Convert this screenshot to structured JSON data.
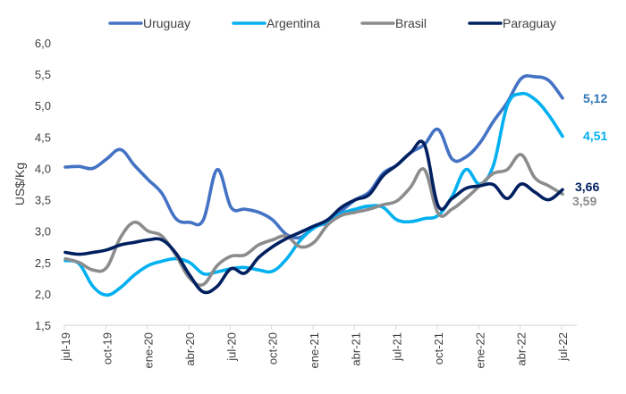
{
  "chart_data": {
    "type": "line",
    "title": "",
    "xlabel": "",
    "ylabel": "US$/Kg",
    "ylim": [
      1.5,
      6.0
    ],
    "yticks": [
      1.5,
      2.0,
      2.5,
      3.0,
      3.5,
      4.0,
      4.5,
      5.0,
      5.5,
      6.0
    ],
    "ytick_labels": [
      "1,5",
      "2,0",
      "2,5",
      "3,0",
      "3,5",
      "4,0",
      "4,5",
      "5,0",
      "5,5",
      "6,0"
    ],
    "grid": false,
    "legend_position": "top",
    "x_tick_labels": [
      "jul-19",
      "oct-19",
      "ene-20",
      "abr-20",
      "jul-20",
      "oct-20",
      "ene-21",
      "abr-21",
      "jul-21",
      "oct-21",
      "ene-22",
      "abr-22",
      "jul-22"
    ],
    "x_tick_every_months": 3,
    "x_months": [
      "jul-19",
      "ago-19",
      "sep-19",
      "oct-19",
      "nov-19",
      "dic-19",
      "ene-20",
      "feb-20",
      "mar-20",
      "abr-20",
      "may-20",
      "jun-20",
      "jul-20",
      "ago-20",
      "sep-20",
      "oct-20",
      "nov-20",
      "dic-20",
      "ene-21",
      "feb-21",
      "mar-21",
      "abr-21",
      "may-21",
      "jun-21",
      "jul-21",
      "ago-21",
      "sep-21",
      "oct-21",
      "nov-21",
      "dic-21",
      "ene-22",
      "feb-22",
      "mar-22",
      "abr-22",
      "may-22",
      "jun-22",
      "jul-22"
    ],
    "series": [
      {
        "name": "Uruguay",
        "color": "#4472C4",
        "label_color": "#2E75B6",
        "end_label": "5,12",
        "values": [
          4.02,
          4.03,
          4.0,
          4.15,
          4.3,
          4.05,
          3.82,
          3.6,
          3.2,
          3.14,
          3.18,
          3.98,
          3.38,
          3.35,
          3.3,
          3.18,
          2.95,
          2.9,
          3.06,
          3.14,
          3.32,
          3.5,
          3.62,
          3.92,
          4.05,
          4.25,
          4.38,
          4.62,
          4.15,
          4.18,
          4.4,
          4.75,
          5.05,
          5.43,
          5.46,
          5.4,
          5.12
        ]
      },
      {
        "name": "Argentina",
        "color": "#00B0F0",
        "label_color": "#00B0F0",
        "end_label": "4,51",
        "values": [
          2.53,
          2.48,
          2.12,
          1.98,
          2.1,
          2.3,
          2.45,
          2.52,
          2.56,
          2.5,
          2.32,
          2.35,
          2.4,
          2.42,
          2.38,
          2.36,
          2.55,
          2.85,
          3.05,
          3.15,
          3.28,
          3.35,
          3.4,
          3.38,
          3.18,
          3.15,
          3.2,
          3.25,
          3.55,
          3.98,
          3.75,
          4.05,
          5.0,
          5.19,
          5.1,
          4.85,
          4.51
        ]
      },
      {
        "name": "Brasil",
        "color": "#8C8C8C",
        "label_color": "#8C8C8C",
        "end_label": "3,59",
        "values": [
          2.56,
          2.5,
          2.38,
          2.42,
          2.9,
          3.14,
          3.0,
          2.92,
          2.62,
          2.25,
          2.15,
          2.45,
          2.6,
          2.62,
          2.78,
          2.86,
          2.92,
          2.75,
          2.82,
          3.1,
          3.25,
          3.3,
          3.35,
          3.42,
          3.48,
          3.7,
          3.98,
          3.28,
          3.35,
          3.52,
          3.72,
          3.92,
          3.98,
          4.22,
          3.85,
          3.72,
          3.59
        ]
      },
      {
        "name": "Paraguay",
        "color": "#002060",
        "label_color": "#002060",
        "end_label": "3,66",
        "values": [
          2.66,
          2.63,
          2.66,
          2.7,
          2.78,
          2.82,
          2.86,
          2.86,
          2.65,
          2.3,
          2.03,
          2.12,
          2.4,
          2.33,
          2.58,
          2.75,
          2.88,
          2.98,
          3.08,
          3.18,
          3.38,
          3.5,
          3.58,
          3.88,
          4.05,
          4.25,
          4.38,
          3.4,
          3.52,
          3.68,
          3.72,
          3.74,
          3.52,
          3.75,
          3.62,
          3.5,
          3.66
        ]
      }
    ]
  }
}
